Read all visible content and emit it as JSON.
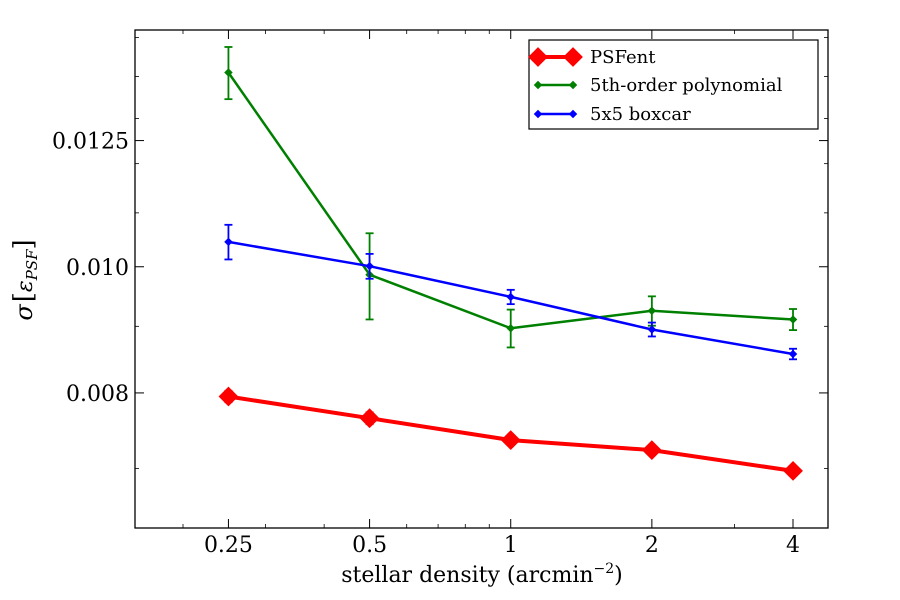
{
  "chart_data": {
    "type": "line",
    "title": "",
    "xlabel": "stellar density (arcmin",
    "xlabel_sup": "−2",
    "xlabel_close": ")",
    "ylabel": "σ[ε_PSF]",
    "ylabel_sigma": "σ",
    "ylabel_open": "[",
    "ylabel_eps": "ε",
    "ylabel_sub": "PSF",
    "ylabel_close": "]",
    "x_scale": "log2",
    "x": [
      0.25,
      0.5,
      1,
      2,
      4
    ],
    "x_tick_labels": [
      "0.25",
      "0.5",
      "1",
      "2",
      "4"
    ],
    "xlim": [
      0.158,
      4.75
    ],
    "y_scale": "log",
    "ylim": [
      0.0063,
      0.0152
    ],
    "y_ticks": [
      0.008,
      0.01,
      0.0125
    ],
    "y_tick_labels": [
      "0.008",
      "0.010",
      "0.0125"
    ],
    "y_minor_ticks": [
      0.007,
      0.009,
      0.011,
      0.012,
      0.013,
      0.014,
      0.015
    ],
    "legend_position": "top-right",
    "series": [
      {
        "name": "PSFent",
        "color": "#ff0000",
        "values": [
          0.00795,
          0.00765,
          0.00736,
          0.00723,
          0.00697
        ],
        "errors": [
          8e-05,
          8e-05,
          6e-05,
          6e-05,
          5e-05
        ]
      },
      {
        "name": "5th-order polynomial",
        "color": "#008000",
        "values": [
          0.0141,
          0.00986,
          0.00897,
          0.00925,
          0.00911
        ],
        "errors": [
          0.00065,
          0.00075,
          0.0003,
          0.00024,
          0.00017
        ]
      },
      {
        "name": "5x5 boxcar",
        "color": "#0000ff",
        "values": [
          0.01045,
          0.01001,
          0.00948,
          0.00895,
          0.00857
        ],
        "errors": [
          0.00032,
          0.00022,
          0.00012,
          0.00011,
          8e-05
        ]
      }
    ]
  }
}
